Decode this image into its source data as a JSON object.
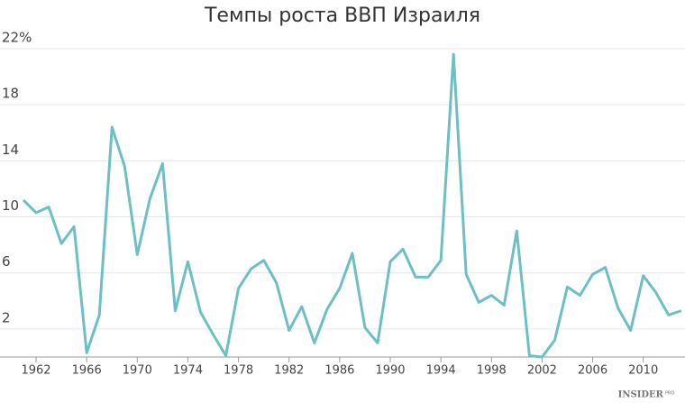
{
  "chart_data": {
    "type": "line",
    "title": "Темпы роста ВВП Израиля",
    "x": [
      1961,
      1962,
      1963,
      1964,
      1965,
      1966,
      1967,
      1968,
      1969,
      1970,
      1971,
      1972,
      1973,
      1974,
      1975,
      1976,
      1977,
      1978,
      1979,
      1980,
      1981,
      1982,
      1983,
      1984,
      1985,
      1986,
      1987,
      1988,
      1989,
      1990,
      1991,
      1992,
      1993,
      1994,
      1995,
      1996,
      1997,
      1998,
      1999,
      2000,
      2001,
      2002,
      2003,
      2004,
      2005,
      2006,
      2007,
      2008,
      2009,
      2010,
      2011,
      2012,
      2013
    ],
    "values": [
      11.2,
      10.3,
      10.7,
      8.1,
      9.3,
      0.3,
      3.0,
      16.4,
      13.6,
      7.3,
      11.3,
      13.8,
      3.3,
      6.8,
      3.2,
      1.6,
      0.1,
      4.9,
      6.3,
      6.9,
      5.3,
      1.9,
      3.6,
      1.0,
      3.4,
      4.9,
      7.4,
      2.1,
      1.0,
      6.8,
      7.7,
      5.7,
      5.7,
      6.9,
      21.6,
      5.9,
      3.9,
      4.4,
      3.7,
      9.0,
      0.1,
      0.0,
      1.2,
      5.0,
      4.4,
      5.9,
      6.4,
      3.5,
      1.9,
      5.8,
      4.6,
      3.0,
      3.3
    ],
    "color": "#6cc0c4",
    "xlim": [
      1961,
      2013.3
    ],
    "xticks": [
      1962,
      1966,
      1970,
      1974,
      1978,
      1982,
      1986,
      1990,
      1994,
      1998,
      2002,
      2006,
      2010
    ],
    "ylim": [
      0,
      22
    ],
    "yticks": [
      2,
      6,
      10,
      14,
      18,
      {
        "value": 22,
        "label": "22%"
      }
    ],
    "grid": true,
    "logo": "INSIDER",
    "logo_badge": "PRO"
  }
}
